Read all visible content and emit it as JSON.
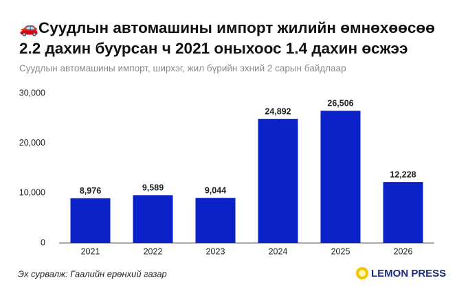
{
  "chart_data": {
    "type": "bar",
    "title": "🚗Суудлын автомашины импорт жилийн өмнөхөөсөө 2.2 дахин буурсан ч 2021 оныхоос 1.4 дахин өсжээ",
    "subtitle": "Суудлын автомашины импорт, ширхэг, жил бүрийн эхний 2 сарын байдлаар",
    "source": "Эх сурвалж: Гаалийн ерөнхий газар",
    "brand": "LEMON PRESS",
    "categories": [
      "2021",
      "2022",
      "2023",
      "2024",
      "2025",
      "2026"
    ],
    "values": [
      8976,
      9589,
      9044,
      24892,
      26506,
      12228
    ],
    "value_labels": [
      "8,976",
      "9,589",
      "9,044",
      "24,892",
      "26,506",
      "12,228"
    ],
    "color": "#0b22c8",
    "ylim": [
      0,
      30000
    ],
    "yticks": [
      0,
      {
        "value": 10000,
        "label": "10,000"
      },
      {
        "value": 20000,
        "label": "20,000"
      },
      {
        "value": 30000,
        "label": "30,000"
      }
    ],
    "grid": false
  }
}
